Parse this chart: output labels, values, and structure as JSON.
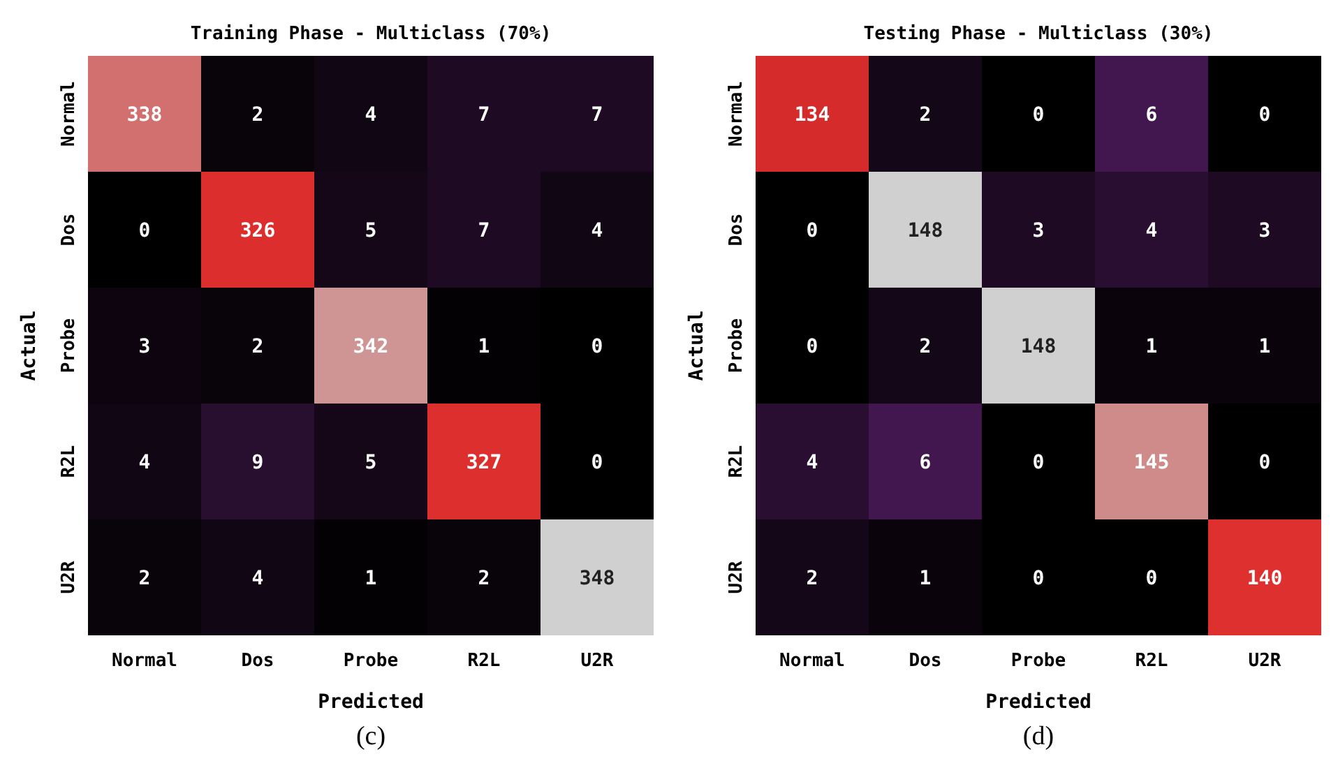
{
  "chart_data": [
    {
      "type": "heatmap",
      "title": "Training Phase - Multiclass (70%)",
      "xlabel": "Predicted",
      "ylabel": "Actual",
      "categories": [
        "Normal",
        "Dos",
        "Probe",
        "R2L",
        "U2R"
      ],
      "y_categories": [
        "Normal",
        "Dos",
        "Probe",
        "R2L",
        "U2R"
      ],
      "data_labels": true,
      "annotations": [
        "(c)"
      ],
      "cells": [
        [
          338,
          2,
          4,
          7,
          7
        ],
        [
          0,
          326,
          5,
          7,
          4
        ],
        [
          3,
          2,
          342,
          1,
          0
        ],
        [
          4,
          9,
          5,
          327,
          0
        ],
        [
          2,
          4,
          1,
          2,
          348
        ]
      ]
    },
    {
      "type": "heatmap",
      "title": "Testing Phase - Multiclass (30%)",
      "xlabel": "Predicted",
      "ylabel": "Actual",
      "categories": [
        "Normal",
        "Dos",
        "Probe",
        "R2L",
        "U2R"
      ],
      "y_categories": [
        "Normal",
        "Dos",
        "Probe",
        "R2L",
        "U2R"
      ],
      "data_labels": true,
      "annotations": [
        "(d)"
      ],
      "cells": [
        [
          134,
          2,
          0,
          6,
          0
        ],
        [
          0,
          148,
          3,
          4,
          3
        ],
        [
          0,
          2,
          148,
          1,
          1
        ],
        [
          4,
          6,
          0,
          145,
          0
        ],
        [
          2,
          1,
          0,
          0,
          140
        ]
      ]
    }
  ]
}
